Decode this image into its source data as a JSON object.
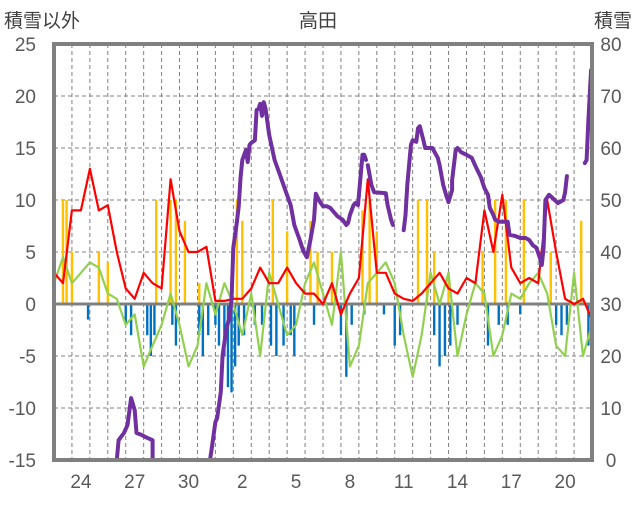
{
  "chart_data": {
    "type": "line",
    "title": "高田",
    "ylabel_left": "積雪以外",
    "ylabel_right": "積雪",
    "x_unit": "days from left edge of plot",
    "xlim": [
      0,
      30
    ],
    "ylim_left": [
      -15,
      25
    ],
    "ylim_right": [
      0,
      80
    ],
    "yticks_left": [
      "25",
      "20",
      "15",
      "10",
      "5",
      "0",
      "-5",
      "-10",
      "-15"
    ],
    "yticks_right": [
      "80",
      "70",
      "60",
      "50",
      "40",
      "30",
      "20",
      "10",
      "0"
    ],
    "xticks": [
      {
        "pos": 1.5,
        "label": "24"
      },
      {
        "pos": 4.5,
        "label": "27"
      },
      {
        "pos": 7.5,
        "label": "30"
      },
      {
        "pos": 10.5,
        "label": "2"
      },
      {
        "pos": 13.5,
        "label": "5"
      },
      {
        "pos": 16.5,
        "label": "8"
      },
      {
        "pos": 19.5,
        "label": "11"
      },
      {
        "pos": 22.5,
        "label": "14"
      },
      {
        "pos": 25.5,
        "label": "17"
      },
      {
        "pos": 28.5,
        "label": "20"
      }
    ],
    "grid": true,
    "colors": {
      "red": "#ff0000",
      "green": "#92d050",
      "orange": "#ffc000",
      "blue": "#0070c0",
      "purple": "#7030a0",
      "frame": "#808080"
    },
    "series": [
      {
        "name": "red-line",
        "axis": "left",
        "step": 0.5,
        "values": [
          3,
          2,
          9,
          9,
          13,
          9,
          9.5,
          5,
          1.5,
          0.5,
          3,
          2,
          1.5,
          12,
          7,
          5,
          5,
          5.5,
          0.3,
          0.3,
          0.5,
          0.5,
          1.5,
          3.5,
          2,
          2,
          3.5,
          2,
          1,
          1,
          0,
          2,
          -1,
          1,
          2.5,
          12,
          3,
          3,
          1,
          0.5,
          0.3,
          1,
          2,
          3,
          1.5,
          1,
          2.5,
          2,
          9,
          5,
          10.5,
          3.5,
          2,
          2.5,
          2,
          10,
          5,
          0.5,
          0,
          0.5,
          -1.5
        ]
      },
      {
        "name": "green-line",
        "axis": "left",
        "step": 0.5,
        "values": [
          2,
          4.5,
          2,
          3,
          4,
          3.5,
          1,
          0.5,
          -2,
          -1,
          -6,
          -4,
          -2,
          1,
          -2,
          -6,
          -4,
          2,
          -1,
          2,
          0,
          -3,
          1,
          -5,
          3,
          0,
          -3,
          -2,
          2,
          4,
          1,
          -2,
          5,
          -6,
          -4,
          2,
          3,
          4,
          2,
          -3,
          -7,
          -3,
          3,
          0,
          3,
          -5,
          -1,
          2,
          1,
          -5,
          -3,
          1,
          0.5,
          2,
          3,
          1,
          -4,
          -5,
          3,
          -5,
          -2
        ]
      },
      {
        "name": "snow-depth",
        "axis": "right",
        "points": [
          [
            0,
            0
          ],
          [
            3.5,
            0
          ],
          [
            3.6,
            3.8
          ],
          [
            3.9,
            5.2
          ],
          [
            4.1,
            6.7
          ],
          [
            4.3,
            11.9
          ],
          [
            4.5,
            9.6
          ],
          [
            4.6,
            5.2
          ],
          [
            4.9,
            4.8
          ],
          [
            5.1,
            4.4
          ],
          [
            5.5,
            3.8
          ],
          [
            5.5,
            0
          ],
          [
            8.7,
            0
          ],
          [
            8.8,
            2.3
          ],
          [
            9,
            7.3
          ],
          [
            9.1,
            8.1
          ],
          [
            9.3,
            13.1
          ],
          [
            9.4,
            20.2
          ],
          [
            9.6,
            25
          ],
          [
            9.8,
            27.7
          ],
          [
            9.9,
            30.8
          ],
          [
            10,
            40.8
          ],
          [
            10.2,
            45.8
          ],
          [
            10.3,
            48.7
          ],
          [
            10.4,
            54.2
          ],
          [
            10.5,
            57.7
          ],
          [
            10.7,
            59.6
          ],
          [
            10.8,
            57.3
          ],
          [
            10.9,
            60.6
          ],
          [
            11.0,
            61
          ],
          [
            11.2,
            61.5
          ],
          [
            11.3,
            67.3
          ],
          [
            11.4,
            67.5
          ],
          [
            11.5,
            68.5
          ],
          [
            11.6,
            66.2
          ],
          [
            11.7,
            68.8
          ],
          [
            11.8,
            67.5
          ],
          [
            12.0,
            62.5
          ],
          [
            12.3,
            57.7
          ],
          [
            12.6,
            54.8
          ],
          [
            12.9,
            51.9
          ],
          [
            13.2,
            49
          ],
          [
            13.4,
            45.2
          ],
          [
            13.7,
            42.3
          ],
          [
            13.9,
            40.2
          ],
          [
            14.1,
            39
          ],
          [
            14.3,
            42.3
          ],
          [
            14.5,
            46.2
          ],
          [
            14.6,
            51.2
          ],
          [
            14.8,
            49.8
          ],
          [
            15,
            48.8
          ],
          [
            15.2,
            48.8
          ],
          [
            15.4,
            48.5
          ],
          [
            15.6,
            47.7
          ],
          [
            15.8,
            46.9
          ],
          [
            16.1,
            46.2
          ],
          [
            16.3,
            45.2
          ],
          [
            16.4,
            45.6
          ],
          [
            16.5,
            47.1
          ],
          [
            16.7,
            49
          ],
          [
            16.8,
            49.4
          ],
          [
            16.95,
            49
          ],
          [
            17.1,
            54.8
          ],
          [
            17.2,
            58.7
          ],
          [
            17.3,
            58.7
          ],
          [
            17.4,
            57.7
          ],
          [
            null,
            null
          ],
          [
            17.5,
            56.7
          ],
          [
            17.7,
            52.9
          ],
          [
            17.85,
            51.5
          ],
          [
            18.5,
            51.3
          ],
          [
            18.6,
            49
          ],
          [
            18.8,
            46.2
          ],
          [
            18.9,
            45.2
          ],
          [
            null,
            null
          ],
          [
            19.5,
            44.2
          ],
          [
            19.6,
            47.1
          ],
          [
            19.7,
            52.9
          ],
          [
            19.9,
            60.6
          ],
          [
            20.0,
            61.5
          ],
          [
            20.2,
            61.2
          ],
          [
            20.3,
            63.8
          ],
          [
            20.4,
            64.2
          ],
          [
            20.6,
            61.5
          ],
          [
            20.7,
            60
          ],
          [
            21.1,
            60
          ],
          [
            21.4,
            58.1
          ],
          [
            21.5,
            56.7
          ],
          [
            21.7,
            52.9
          ],
          [
            21.9,
            50.6
          ],
          [
            22,
            49.6
          ],
          [
            22.2,
            51.9
          ],
          [
            22.2,
            53.8
          ],
          [
            22.4,
            59.6
          ],
          [
            22.5,
            60
          ],
          [
            22.7,
            59.2
          ],
          [
            23.0,
            58.7
          ],
          [
            23.3,
            58.1
          ],
          [
            23.4,
            57.3
          ],
          [
            23.6,
            55.8
          ],
          [
            23.8,
            54.4
          ],
          [
            24,
            52.3
          ],
          [
            24.2,
            51
          ],
          [
            24.3,
            48.5
          ],
          [
            24.5,
            47.1
          ],
          [
            24.6,
            46.2
          ],
          [
            24.8,
            45.8
          ],
          [
            25.3,
            45.8
          ],
          [
            25.4,
            43.3
          ],
          [
            25.7,
            43.1
          ],
          [
            26,
            42.7
          ],
          [
            26.3,
            42.7
          ],
          [
            26.5,
            42.3
          ],
          [
            26.7,
            41.3
          ],
          [
            26.9,
            40.8
          ],
          [
            27.1,
            38.8
          ],
          [
            27.2,
            37.5
          ],
          [
            27.3,
            40.8
          ],
          [
            27.4,
            50
          ],
          [
            27.6,
            51
          ],
          [
            27.8,
            50.4
          ],
          [
            28.1,
            49.4
          ],
          [
            28.4,
            50
          ],
          [
            28.5,
            51.5
          ],
          [
            28.6,
            54.6
          ],
          [
            null,
            null
          ],
          [
            29.6,
            57.1
          ],
          [
            29.7,
            57.7
          ],
          [
            29.8,
            65.4
          ],
          [
            29.95,
            75
          ]
        ]
      }
    ],
    "bars_orange": [
      [
        0.5,
        10
      ],
      [
        0.7,
        10
      ],
      [
        1.0,
        5
      ],
      [
        2.5,
        5
      ],
      [
        3.0,
        4
      ],
      [
        5.7,
        10
      ],
      [
        6.5,
        10
      ],
      [
        6.8,
        10
      ],
      [
        7.3,
        8
      ],
      [
        8.1,
        2
      ],
      [
        10.2,
        10
      ],
      [
        10.5,
        8
      ],
      [
        12.2,
        10
      ],
      [
        13.0,
        7
      ],
      [
        14.3,
        8
      ],
      [
        14.7,
        5
      ],
      [
        15.5,
        5
      ],
      [
        17.2,
        9
      ],
      [
        17.6,
        10
      ],
      [
        18.0,
        7
      ],
      [
        20.3,
        10
      ],
      [
        20.8,
        10
      ],
      [
        21.2,
        5
      ],
      [
        22.0,
        3
      ],
      [
        23.9,
        5
      ],
      [
        24.6,
        10
      ],
      [
        25.2,
        10
      ],
      [
        26.2,
        10
      ],
      [
        27.7,
        5
      ],
      [
        29.4,
        8
      ]
    ],
    "bars_blue": [
      [
        1.9,
        -1.5
      ],
      [
        4.0,
        -2
      ],
      [
        4.3,
        -3
      ],
      [
        5.2,
        -3
      ],
      [
        5.4,
        -5
      ],
      [
        5.6,
        -3
      ],
      [
        6.6,
        -2
      ],
      [
        6.8,
        -4
      ],
      [
        8.1,
        -3
      ],
      [
        8.3,
        -5
      ],
      [
        8.6,
        -3
      ],
      [
        9.0,
        -2
      ],
      [
        9.2,
        -4
      ],
      [
        9.5,
        -5
      ],
      [
        9.7,
        -8
      ],
      [
        9.9,
        -8.5
      ],
      [
        10.1,
        -6
      ],
      [
        10.3,
        -4
      ],
      [
        10.6,
        -3
      ],
      [
        11.2,
        -2
      ],
      [
        11.6,
        -2
      ],
      [
        12.1,
        -4
      ],
      [
        12.4,
        -5
      ],
      [
        12.8,
        -4
      ],
      [
        13.2,
        -3
      ],
      [
        13.4,
        -5
      ],
      [
        14.5,
        -2
      ],
      [
        16.0,
        -3
      ],
      [
        16.3,
        -7
      ],
      [
        16.6,
        -2
      ],
      [
        17.3,
        -1
      ],
      [
        18.4,
        -1
      ],
      [
        19.0,
        -4
      ],
      [
        19.3,
        -3
      ],
      [
        21.2,
        -3
      ],
      [
        21.5,
        -6
      ],
      [
        21.8,
        -5
      ],
      [
        22.1,
        -4
      ],
      [
        22.5,
        -2
      ],
      [
        24.2,
        -4
      ],
      [
        24.8,
        -2
      ],
      [
        25.3,
        -2
      ],
      [
        26.0,
        -1
      ],
      [
        28.0,
        -2
      ],
      [
        28.3,
        -3
      ],
      [
        28.6,
        -2
      ],
      [
        29.8,
        -4
      ]
    ]
  }
}
